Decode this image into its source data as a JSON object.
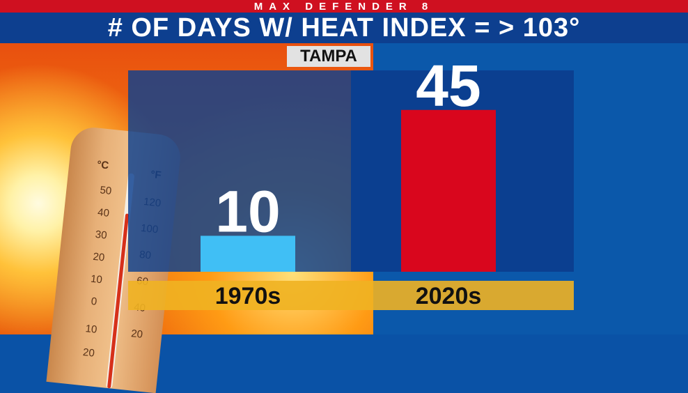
{
  "header": {
    "brand": "MAX DEFENDER 8",
    "title": "# OF DAYS W/ HEAT INDEX = > 103°"
  },
  "location": "TAMPA",
  "colors": {
    "brand_red": "#cf1020",
    "title_blue": "#0d3f8f",
    "panel_blue": "#0b3f90",
    "bar_1970s": "#40bff5",
    "bar_2020s": "#d9061d",
    "label_gold": "#f0b322"
  },
  "thermometer": {
    "celsius_labels": [
      "°C",
      "50",
      "40",
      "30",
      "20",
      "10",
      "0",
      "10",
      "20"
    ],
    "fahrenheit_labels": [
      "°F",
      "120",
      "100",
      "80",
      "60",
      "40",
      "20"
    ]
  },
  "chart_data": {
    "type": "bar",
    "categories": [
      "1970s",
      "2020s"
    ],
    "values": [
      10,
      45
    ],
    "title": "# OF DAYS W/ HEAT INDEX = > 103°",
    "xlabel": "",
    "ylabel": "",
    "ylim": [
      0,
      56
    ],
    "grid": false,
    "data_labels": [
      "10",
      "45"
    ]
  }
}
